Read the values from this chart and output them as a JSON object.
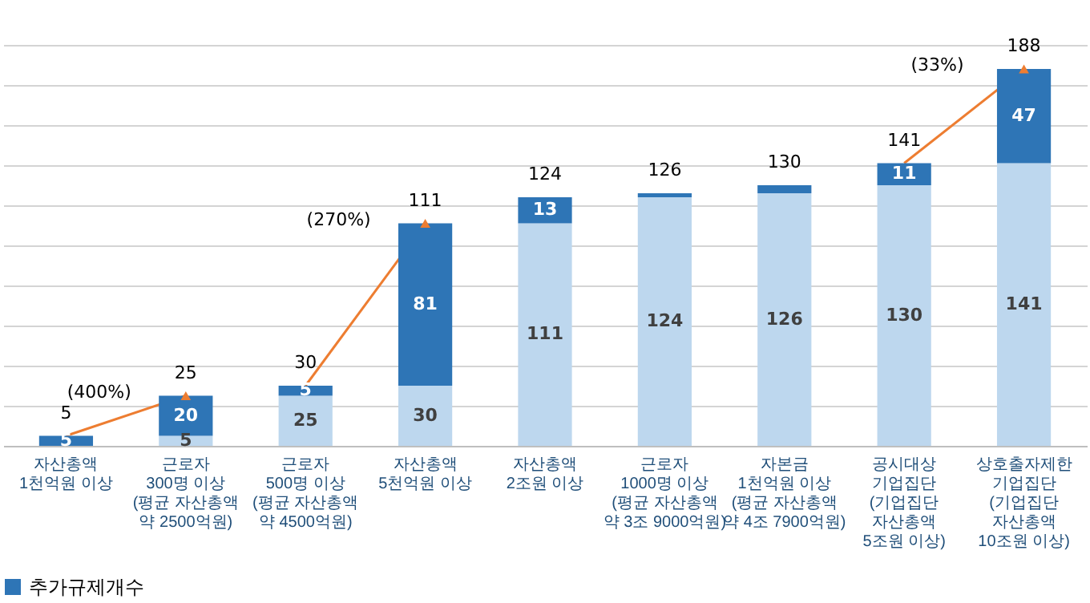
{
  "chart_data": {
    "type": "bar",
    "stacked": true,
    "grid": "y",
    "legend": "bottom",
    "tick_labels": "x",
    "categories": [
      "자산총액\n1천억원 이상",
      "근로자\n300명 이상\n(평균 자산총액\n약 2500억원)",
      "근로자\n500명 이상\n(평균 자산총액\n약 4500억원)",
      "자산총액\n5천억원 이상",
      "자산총액\n2조원 이상",
      "근로자\n1000명 이상\n(평균 자산총액\n약 3조 9000억원)",
      "자본금\n1천억원 이상\n(평균 자산총액\n약 4조 7900억원)",
      "공시대상\n기업집단\n(기업집단\n자산총액\n5조원 이상)",
      "상호출자제한\n기업집단\n(기업집단\n자산총액\n10조원 이상)"
    ],
    "series": [
      {
        "color": "#bdd7ee",
        "values": [
          null,
          5,
          25,
          30,
          111,
          124,
          126,
          130,
          141
        ],
        "value_labels": [
          null,
          "5",
          "25",
          "30",
          "111",
          "124",
          "126",
          "130",
          "141"
        ]
      },
      {
        "name": "추가규제개수",
        "color": "#2e75b6",
        "values": [
          5,
          20,
          5,
          81,
          13,
          2,
          4,
          11,
          47
        ],
        "value_labels": [
          "5",
          "20",
          "5",
          "81",
          "13",
          null,
          null,
          "11",
          "47"
        ]
      }
    ],
    "totals": [
      "5",
      "25",
      "30",
      "111",
      "124",
      "126",
      "130",
      "141",
      "188"
    ],
    "annotations": [
      "(400%)",
      "(270%)",
      "(33%)"
    ]
  }
}
